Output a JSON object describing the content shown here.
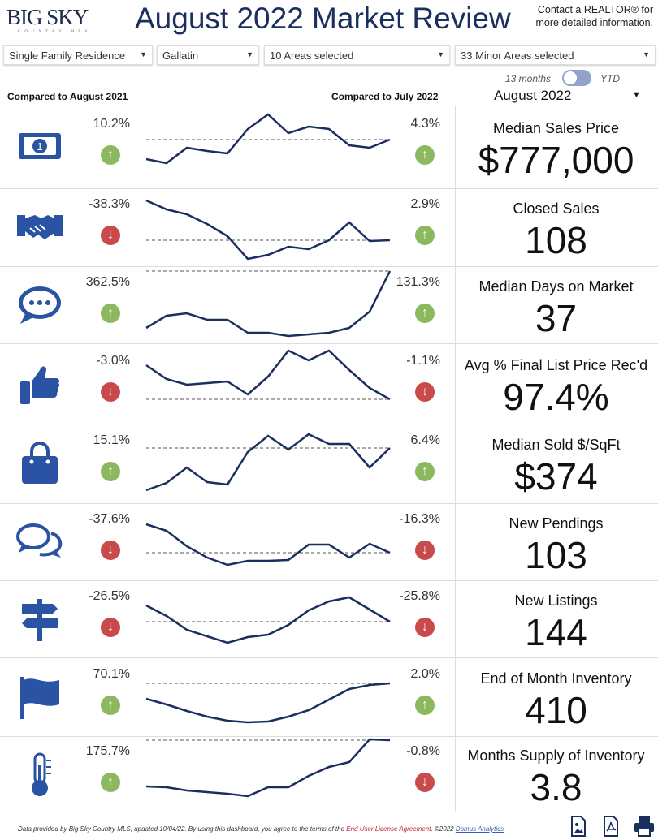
{
  "header": {
    "logo_text": "BIG SKY",
    "logo_sub": "COUNTRY MLS",
    "title": "August 2022 Market Review",
    "contact": "Contact a REALTOR® for more detailed information."
  },
  "filters": [
    {
      "value": "Single Family Residence"
    },
    {
      "value": "Gallatin"
    },
    {
      "value": "10 Areas selected"
    },
    {
      "value": "33 Minor Areas selected"
    }
  ],
  "toggle": {
    "left": "13 months",
    "right": "YTD"
  },
  "compare": {
    "year": "Compared to August 2021",
    "month": "Compared to July 2022"
  },
  "period": {
    "value": "August 2022"
  },
  "colors": {
    "navy": "#1b2f5e",
    "icon": "#2a53a3",
    "up": "#8cb860",
    "down": "#c94a4a"
  },
  "metrics": [
    {
      "icon": "money-icon",
      "label": "Median Sales Price",
      "value": "$777,000",
      "yoy": "10.2%",
      "yoy_dir": "up",
      "mom": "4.3%",
      "mom_dir": "up",
      "trend": [
        37,
        32,
        51,
        47,
        44,
        74,
        92,
        69,
        77,
        74,
        54,
        51,
        61
      ]
    },
    {
      "icon": "handshake-icon",
      "label": "Closed Sales",
      "value": "108",
      "yoy": "-38.3%",
      "yoy_dir": "down",
      "mom": "2.9%",
      "mom_dir": "up",
      "trend": [
        82,
        71,
        65,
        53,
        38,
        10,
        15,
        25,
        22,
        33,
        55,
        32,
        33
      ]
    },
    {
      "icon": "chat-bubble-icon",
      "label": "Median Days on Market",
      "value": "37",
      "yoy": "362.5%",
      "yoy_dir": "up",
      "mom": "131.3%",
      "mom_dir": "up",
      "trend": [
        20,
        35,
        38,
        30,
        30,
        14,
        14,
        10,
        12,
        14,
        20,
        40,
        90
      ]
    },
    {
      "icon": "thumbs-up-icon",
      "label": "Avg % Final List Price Rec'd",
      "value": "97.4%",
      "yoy": "-3.0%",
      "yoy_dir": "down",
      "mom": "-1.1%",
      "mom_dir": "down",
      "trend": [
        73,
        56,
        49,
        51,
        53,
        37,
        59,
        91,
        79,
        91,
        67,
        45,
        31
      ]
    },
    {
      "icon": "shopping-bag-icon",
      "label": "Median Sold $/SqFt",
      "value": "$374",
      "yoy": "15.1%",
      "yoy_dir": "up",
      "mom": "6.4%",
      "mom_dir": "up",
      "trend": [
        17,
        26,
        45,
        27,
        24,
        64,
        84,
        67,
        86,
        74,
        74,
        45,
        69
      ]
    },
    {
      "icon": "comments-icon",
      "label": "New Pendings",
      "value": "103",
      "yoy": "-37.6%",
      "yoy_dir": "down",
      "mom": "-16.3%",
      "mom_dir": "down",
      "trend": [
        70,
        62,
        43,
        29,
        20,
        25,
        25,
        26,
        45,
        45,
        29,
        46,
        35
      ]
    },
    {
      "icon": "signpost-icon",
      "label": "New Listings",
      "value": "144",
      "yoy": "-26.5%",
      "yoy_dir": "down",
      "mom": "-25.8%",
      "mom_dir": "down",
      "trend": [
        65,
        52,
        35,
        27,
        19,
        26,
        29,
        41,
        59,
        70,
        75,
        60,
        45
      ]
    },
    {
      "icon": "flag-icon",
      "label": "End of Month Inventory",
      "value": "410",
      "yoy": "70.1%",
      "yoy_dir": "up",
      "mom": "2.0%",
      "mom_dir": "up",
      "trend": [
        47,
        40,
        32,
        25,
        20,
        18,
        19,
        25,
        33,
        46,
        59,
        64,
        66
      ]
    },
    {
      "icon": "thermometer-icon",
      "label": "Months Supply of Inventory",
      "value": "3.8",
      "yoy": "175.7%",
      "yoy_dir": "up",
      "mom": "-0.8%",
      "mom_dir": "down",
      "trend": [
        32,
        31,
        27,
        25,
        23,
        20,
        31,
        31,
        45,
        56,
        62,
        90,
        89
      ]
    }
  ],
  "footer": {
    "text": "Data provided by Big Sky Country MLS, updated 10/04/22.  By using this dashboard, you agree to the terms of the ",
    "eula": "End User License Agreement",
    "copy": ".  ©2022 ",
    "link": "Domus Analytics"
  }
}
